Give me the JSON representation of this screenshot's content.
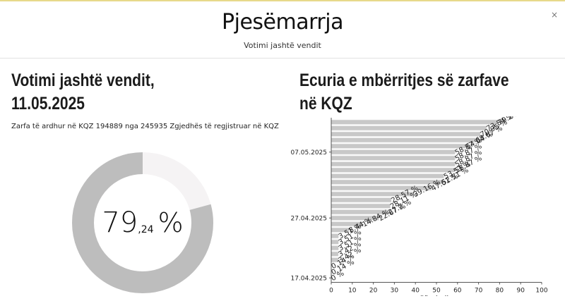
{
  "header": {
    "title": "Pjesëmarrja",
    "subtitle": "Votimi jashtë vendit",
    "close_label": "×"
  },
  "left_panel": {
    "title_line1": "Votimi jashtë vendit,",
    "title_line2": "11.05.2025",
    "description": "Zarfa të ardhur në KQZ 194889 nga 245935 Zgjedhës të regjistruar në KQZ",
    "donut": {
      "percent": 79.24,
      "percent_int": "79",
      "percent_dec": ",24",
      "percent_symbol": "%",
      "fill_color": "#bdbdbd",
      "rest_color": "#f5f3f4"
    }
  },
  "right_panel": {
    "title_line1": "Ecuria e mbërritjes së zarfave",
    "title_line2": "në KQZ"
  },
  "chart_data": {
    "type": "bar",
    "orientation": "horizontal",
    "xlabel": "Përqindja",
    "xlim": [
      0,
      100
    ],
    "xticks": [
      "0",
      "10",
      "20",
      "30",
      "40",
      "50",
      "60",
      "70",
      "80",
      "90",
      "100"
    ],
    "y_tick_labels": [
      "07.05.2025",
      "27.04.2025",
      "17.04.2025"
    ],
    "bar_color": "#c8c8c8",
    "series": [
      {
        "values": [
          79.24,
          73.84,
          70.95,
          68.67,
          64.04,
          58.87,
          58.87,
          58.87,
          58.87,
          53.53,
          52.51,
          47.61,
          39.16,
          28.57,
          28.11,
          27.2,
          22.67,
          14.84,
          8.44,
          3.51,
          3.51,
          3.51,
          3.42,
          3.42,
          0.14,
          0.14,
          0
        ],
        "labels": [
          "79.24 %",
          "73.84 %",
          "70.95 %",
          "68.67 %",
          "64.04 %",
          "58.87 %",
          "58.87 %",
          "58.87 %",
          "58.87 %",
          "53.53 %",
          "52.51 %",
          "47.61 %",
          "39.16 %",
          "28.57 %",
          "28.11 %",
          "27.2 %",
          "22.67 %",
          "14.84 %",
          "8.44 %",
          "3.51 %",
          "3.51 %",
          "3.51 %",
          "3.42 %",
          "3.42 %",
          "0.14 %",
          "0.14 %",
          "0 %"
        ]
      }
    ]
  }
}
